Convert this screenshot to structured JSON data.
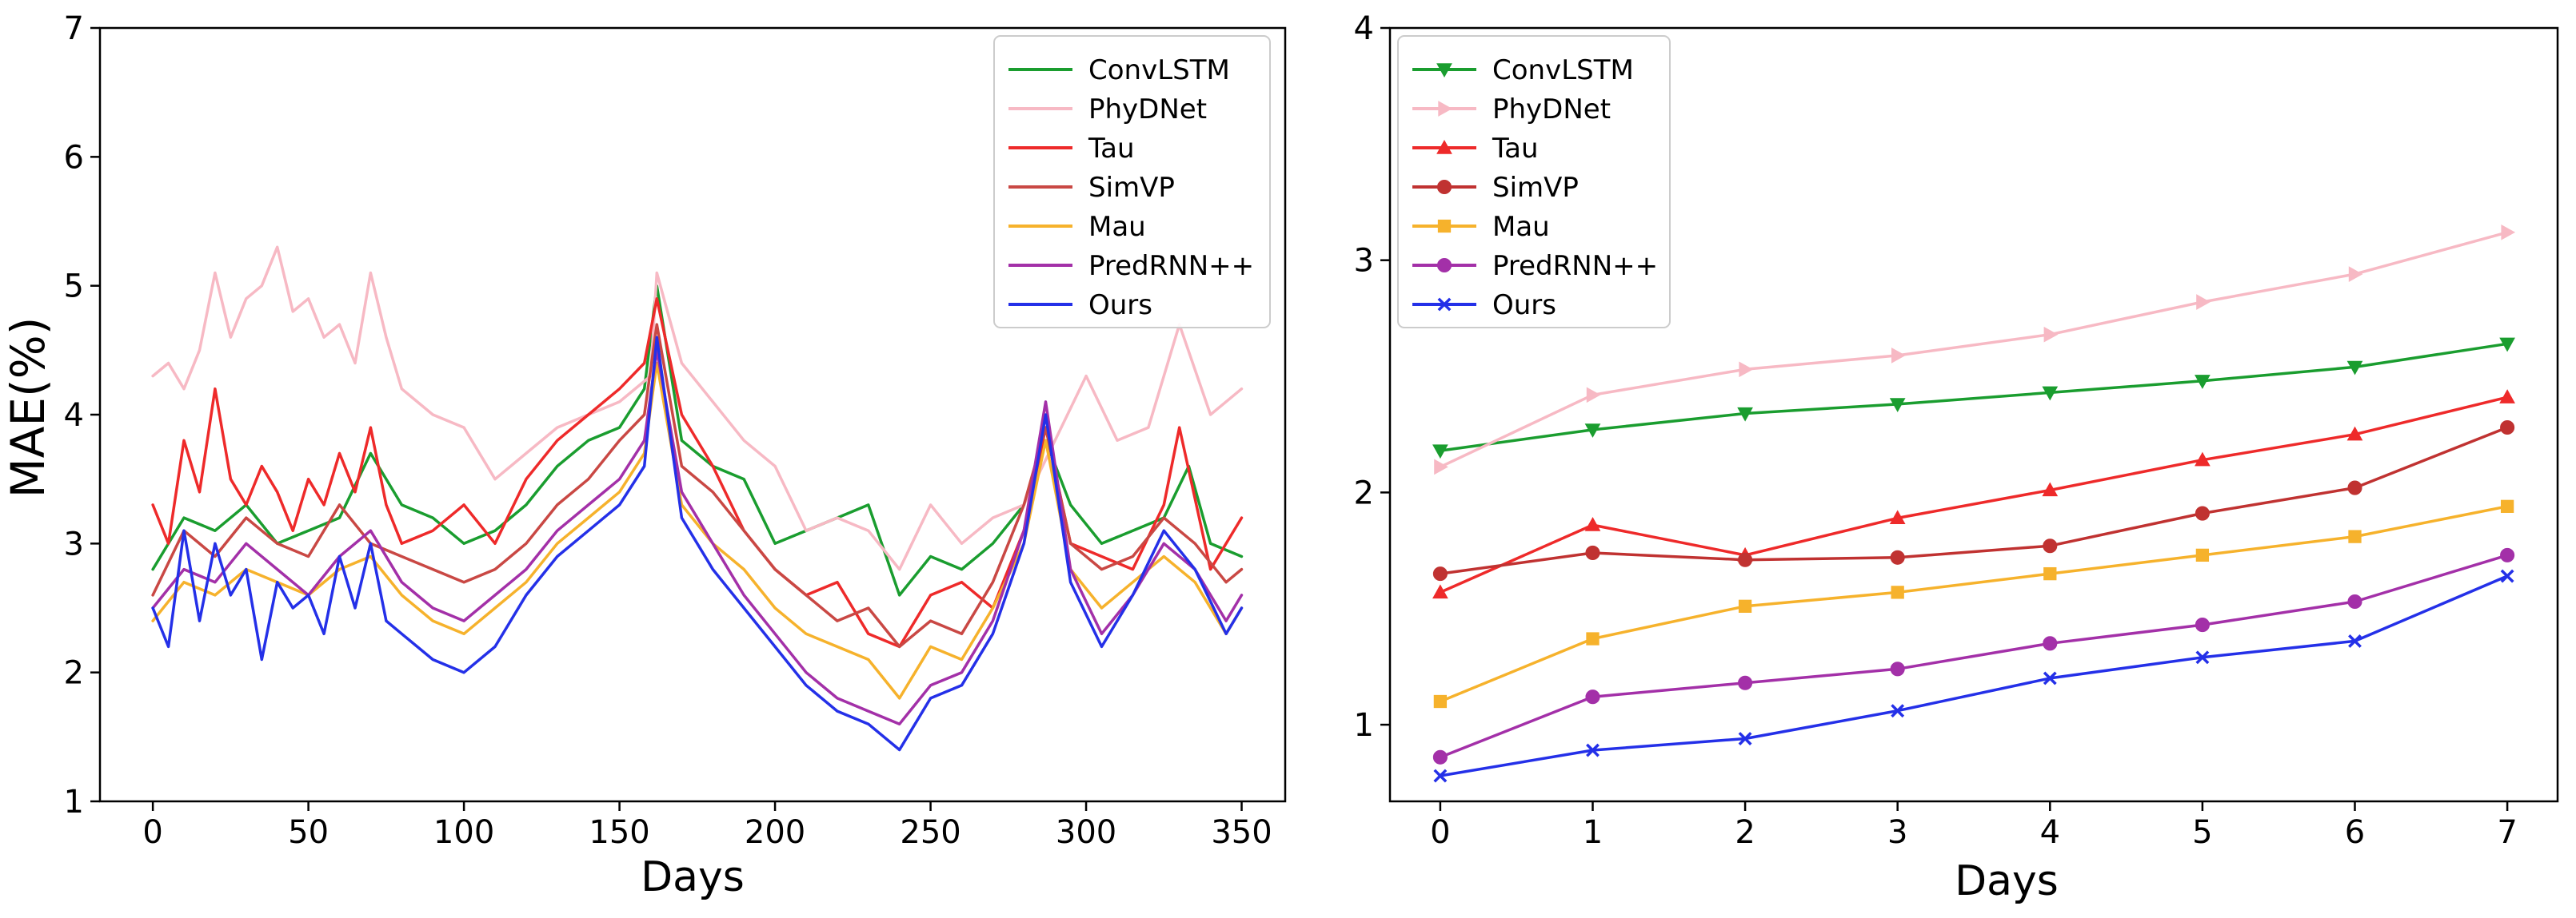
{
  "chart_data": [
    {
      "type": "line",
      "panel": "left",
      "title": "",
      "xlabel": "Days",
      "ylabel": "MAE(%)",
      "xlim": [
        -17,
        364
      ],
      "ylim": [
        1,
        7
      ],
      "xticks": [
        0,
        50,
        100,
        150,
        200,
        250,
        300,
        350
      ],
      "yticks": [
        1,
        2,
        3,
        4,
        5,
        6,
        7
      ],
      "grid": false,
      "legend_position": "upper-right",
      "series": [
        {
          "name": "ConvLSTM",
          "color": "#1a9d2f",
          "marker": "none",
          "x": [
            0,
            10,
            20,
            30,
            40,
            50,
            60,
            70,
            80,
            90,
            100,
            110,
            120,
            130,
            140,
            150,
            158,
            162,
            170,
            180,
            190,
            200,
            210,
            220,
            230,
            240,
            250,
            260,
            270,
            280,
            287,
            295,
            305,
            315,
            325,
            333,
            340,
            350
          ],
          "y": [
            2.8,
            3.2,
            3.1,
            3.3,
            3.0,
            3.1,
            3.2,
            3.7,
            3.3,
            3.2,
            3.0,
            3.1,
            3.3,
            3.6,
            3.8,
            3.9,
            4.2,
            5.0,
            3.8,
            3.6,
            3.5,
            3.0,
            3.1,
            3.2,
            3.3,
            2.6,
            2.9,
            2.8,
            3.0,
            3.3,
            3.8,
            3.3,
            3.0,
            3.1,
            3.2,
            3.6,
            3.0,
            2.9
          ]
        },
        {
          "name": "PhyDNet",
          "color": "#f7b9c4",
          "marker": "none",
          "x": [
            0,
            5,
            10,
            15,
            20,
            25,
            30,
            35,
            40,
            45,
            50,
            55,
            60,
            65,
            70,
            75,
            80,
            90,
            100,
            110,
            120,
            130,
            140,
            150,
            160,
            162,
            170,
            180,
            190,
            200,
            210,
            220,
            230,
            240,
            250,
            260,
            270,
            280,
            290,
            300,
            310,
            320,
            330,
            340,
            350
          ],
          "y": [
            4.3,
            4.4,
            4.2,
            4.5,
            5.1,
            4.6,
            4.9,
            5.0,
            5.3,
            4.8,
            4.9,
            4.6,
            4.7,
            4.4,
            5.1,
            4.6,
            4.2,
            4.0,
            3.9,
            3.5,
            3.7,
            3.9,
            4.0,
            4.1,
            4.3,
            5.1,
            4.4,
            4.1,
            3.8,
            3.6,
            3.1,
            3.2,
            3.1,
            2.8,
            3.3,
            3.0,
            3.2,
            3.3,
            3.8,
            4.3,
            3.8,
            3.9,
            4.7,
            4.0,
            4.2
          ]
        },
        {
          "name": "Tau",
          "color": "#ee2a2a",
          "marker": "none",
          "x": [
            0,
            5,
            10,
            15,
            20,
            25,
            30,
            35,
            40,
            45,
            50,
            55,
            60,
            65,
            70,
            75,
            80,
            90,
            100,
            110,
            120,
            130,
            140,
            150,
            158,
            162,
            170,
            180,
            190,
            200,
            210,
            220,
            230,
            240,
            250,
            260,
            270,
            280,
            287,
            295,
            305,
            315,
            325,
            330,
            340,
            350
          ],
          "y": [
            3.3,
            3.0,
            3.8,
            3.4,
            4.2,
            3.5,
            3.3,
            3.6,
            3.4,
            3.1,
            3.5,
            3.3,
            3.7,
            3.4,
            3.9,
            3.3,
            3.0,
            3.1,
            3.3,
            3.0,
            3.5,
            3.8,
            4.0,
            4.2,
            4.4,
            4.9,
            4.0,
            3.6,
            3.1,
            2.8,
            2.6,
            2.7,
            2.3,
            2.2,
            2.6,
            2.7,
            2.5,
            3.1,
            3.9,
            3.0,
            2.9,
            2.8,
            3.3,
            3.9,
            2.8,
            3.2
          ]
        },
        {
          "name": "SimVP",
          "color": "#c94844",
          "marker": "none",
          "x": [
            0,
            10,
            20,
            30,
            40,
            50,
            60,
            70,
            80,
            90,
            100,
            110,
            120,
            130,
            140,
            150,
            158,
            162,
            170,
            180,
            190,
            200,
            210,
            220,
            230,
            240,
            250,
            260,
            270,
            280,
            287,
            295,
            305,
            315,
            325,
            335,
            345,
            350
          ],
          "y": [
            2.6,
            3.1,
            2.9,
            3.2,
            3.0,
            2.9,
            3.3,
            3.0,
            2.9,
            2.8,
            2.7,
            2.8,
            3.0,
            3.3,
            3.5,
            3.8,
            4.0,
            4.7,
            3.6,
            3.4,
            3.1,
            2.8,
            2.6,
            2.4,
            2.5,
            2.2,
            2.4,
            2.3,
            2.7,
            3.3,
            3.9,
            3.0,
            2.8,
            2.9,
            3.2,
            3.0,
            2.7,
            2.8
          ]
        },
        {
          "name": "Mau",
          "color": "#f6b22c",
          "marker": "none",
          "x": [
            0,
            10,
            20,
            30,
            40,
            50,
            60,
            70,
            80,
            90,
            100,
            110,
            120,
            130,
            140,
            150,
            158,
            162,
            170,
            180,
            190,
            200,
            210,
            220,
            230,
            240,
            250,
            260,
            270,
            280,
            287,
            295,
            305,
            315,
            325,
            335,
            345,
            350
          ],
          "y": [
            2.4,
            2.7,
            2.6,
            2.8,
            2.7,
            2.6,
            2.8,
            2.9,
            2.6,
            2.4,
            2.3,
            2.5,
            2.7,
            3.0,
            3.2,
            3.4,
            3.7,
            4.4,
            3.3,
            3.0,
            2.8,
            2.5,
            2.3,
            2.2,
            2.1,
            1.8,
            2.2,
            2.1,
            2.5,
            3.0,
            3.8,
            2.8,
            2.5,
            2.7,
            2.9,
            2.7,
            2.3,
            2.5
          ]
        },
        {
          "name": "PredRNN++",
          "color": "#a330a8",
          "marker": "none",
          "x": [
            0,
            10,
            20,
            30,
            40,
            50,
            60,
            70,
            80,
            90,
            100,
            110,
            120,
            130,
            140,
            150,
            158,
            162,
            170,
            180,
            190,
            200,
            210,
            220,
            230,
            240,
            250,
            260,
            270,
            280,
            287,
            295,
            305,
            315,
            325,
            335,
            345,
            350
          ],
          "y": [
            2.5,
            2.8,
            2.7,
            3.0,
            2.8,
            2.6,
            2.9,
            3.1,
            2.7,
            2.5,
            2.4,
            2.6,
            2.8,
            3.1,
            3.3,
            3.5,
            3.8,
            4.5,
            3.4,
            3.0,
            2.6,
            2.3,
            2.0,
            1.8,
            1.7,
            1.6,
            1.9,
            2.0,
            2.4,
            3.1,
            4.1,
            2.8,
            2.3,
            2.6,
            3.0,
            2.8,
            2.4,
            2.6
          ]
        },
        {
          "name": "Ours",
          "color": "#2430e8",
          "marker": "none",
          "x": [
            0,
            5,
            10,
            15,
            20,
            25,
            30,
            35,
            40,
            45,
            50,
            55,
            60,
            65,
            70,
            75,
            80,
            90,
            100,
            110,
            120,
            130,
            140,
            150,
            158,
            162,
            170,
            180,
            190,
            200,
            210,
            220,
            230,
            240,
            250,
            260,
            270,
            280,
            287,
            295,
            305,
            315,
            325,
            335,
            345,
            350
          ],
          "y": [
            2.5,
            2.2,
            3.1,
            2.4,
            3.0,
            2.6,
            2.8,
            2.1,
            2.7,
            2.5,
            2.6,
            2.3,
            2.9,
            2.5,
            3.0,
            2.4,
            2.3,
            2.1,
            2.0,
            2.2,
            2.6,
            2.9,
            3.1,
            3.3,
            3.6,
            4.6,
            3.2,
            2.8,
            2.5,
            2.2,
            1.9,
            1.7,
            1.6,
            1.4,
            1.8,
            1.9,
            2.3,
            3.0,
            4.0,
            2.7,
            2.2,
            2.6,
            3.1,
            2.8,
            2.3,
            2.5
          ]
        }
      ]
    },
    {
      "type": "line",
      "panel": "right",
      "title": "",
      "xlabel": "Days",
      "ylabel": "",
      "xlim": [
        -0.33,
        7.33
      ],
      "ylim": [
        0.67,
        4.0
      ],
      "xticks": [
        0,
        1,
        2,
        3,
        4,
        5,
        6,
        7
      ],
      "yticks": [
        1,
        2,
        3,
        4
      ],
      "grid": false,
      "legend_position": "upper-left",
      "series": [
        {
          "name": "ConvLSTM",
          "color": "#1a9d2f",
          "marker": "triangle-down",
          "x": [
            0,
            1,
            2,
            3,
            4,
            5,
            6,
            7
          ],
          "y": [
            2.18,
            2.27,
            2.34,
            2.38,
            2.43,
            2.48,
            2.54,
            2.64
          ]
        },
        {
          "name": "PhyDNet",
          "color": "#f7b9c4",
          "marker": "triangle-right",
          "x": [
            0,
            1,
            2,
            3,
            4,
            5,
            6,
            7
          ],
          "y": [
            2.11,
            2.42,
            2.53,
            2.59,
            2.68,
            2.82,
            2.94,
            3.12
          ]
        },
        {
          "name": "Tau",
          "color": "#ee2a2a",
          "marker": "triangle-up",
          "x": [
            0,
            1,
            2,
            3,
            4,
            5,
            6,
            7
          ],
          "y": [
            1.57,
            1.86,
            1.73,
            1.89,
            2.01,
            2.14,
            2.25,
            2.41
          ]
        },
        {
          "name": "SimVP",
          "color": "#c03231",
          "marker": "circle",
          "x": [
            0,
            1,
            2,
            3,
            4,
            5,
            6,
            7
          ],
          "y": [
            1.65,
            1.74,
            1.71,
            1.72,
            1.77,
            1.91,
            2.02,
            2.28
          ]
        },
        {
          "name": "Mau",
          "color": "#f6b22c",
          "marker": "square",
          "x": [
            0,
            1,
            2,
            3,
            4,
            5,
            6,
            7
          ],
          "y": [
            1.1,
            1.37,
            1.51,
            1.57,
            1.65,
            1.73,
            1.81,
            1.94
          ]
        },
        {
          "name": "PredRNN++",
          "color": "#a330a8",
          "marker": "circle",
          "x": [
            0,
            1,
            2,
            3,
            4,
            5,
            6,
            7
          ],
          "y": [
            0.86,
            1.12,
            1.18,
            1.24,
            1.35,
            1.43,
            1.53,
            1.73
          ]
        },
        {
          "name": "Ours",
          "color": "#2430e8",
          "marker": "x",
          "x": [
            0,
            1,
            2,
            3,
            4,
            5,
            6,
            7
          ],
          "y": [
            0.78,
            0.89,
            0.94,
            1.06,
            1.2,
            1.29,
            1.36,
            1.64
          ]
        }
      ]
    }
  ]
}
